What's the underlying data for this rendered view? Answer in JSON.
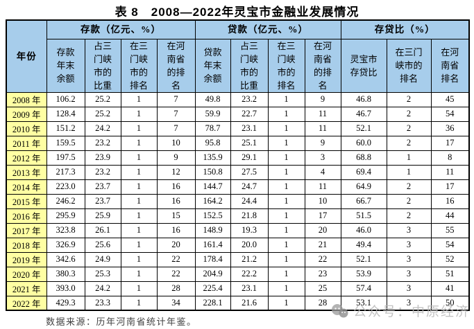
{
  "page": {
    "title": "表 8　2008—2022年灵宝市金融业发展情况",
    "footer": "数据来源：历年河南省统计年鉴。",
    "watermark": "公众号：中原经济"
  },
  "colors": {
    "header_bg": "#A7CDEB",
    "year_bg": "#FFFFA3",
    "border": "#000000",
    "watermark_gray": "#b9b9b9"
  },
  "table": {
    "year_header": "年份",
    "groups": [
      {
        "label": "存款（亿元、%）",
        "colspan": 4
      },
      {
        "label": "贷款（亿元、%）",
        "colspan": 4
      },
      {
        "label": "存贷比（%）",
        "colspan": 3
      }
    ],
    "sub_headers": [
      "存款年末余额",
      "占三门峡市的比重",
      "在三门峡市的排名",
      "在河南省的排名",
      "贷款年末余额",
      "占三门峡市的比重",
      "在三门峡市的排名",
      "在河南省的排名",
      "灵宝市存贷比",
      "在三门峡市的排名",
      "在河南省排名"
    ],
    "rows": [
      {
        "year": "2008 年",
        "values": [
          "106.2",
          "25.2",
          "1",
          "7",
          "49.8",
          "23.2",
          "1",
          "9",
          "46.8",
          "2",
          "45"
        ]
      },
      {
        "year": "2009 年",
        "values": [
          "128.4",
          "25.2",
          "1",
          "7",
          "59.9",
          "22.7",
          "1",
          "11",
          "46.7",
          "2",
          "54"
        ]
      },
      {
        "year": "2010 年",
        "values": [
          "151.2",
          "24.2",
          "1",
          "7",
          "78.7",
          "23.1",
          "1",
          "11",
          "52.1",
          "2",
          "36"
        ]
      },
      {
        "year": "2011 年",
        "values": [
          "159.5",
          "23.2",
          "1",
          "10",
          "95.8",
          "25.1",
          "1",
          "9",
          "60.0",
          "2",
          "17"
        ]
      },
      {
        "year": "2012 年",
        "values": [
          "197.5",
          "23.9",
          "1",
          "9",
          "135.9",
          "29.1",
          "1",
          "3",
          "68.8",
          "1",
          "8"
        ]
      },
      {
        "year": "2013 年",
        "values": [
          "217.3",
          "23.2",
          "1",
          "12",
          "150.8",
          "27.5",
          "1",
          "4",
          "69.4",
          "1",
          "11"
        ]
      },
      {
        "year": "2014 年",
        "values": [
          "223.0",
          "23.7",
          "1",
          "16",
          "144.7",
          "24.7",
          "1",
          "11",
          "64.9",
          "2",
          "17"
        ]
      },
      {
        "year": "2015 年",
        "values": [
          "246.2",
          "23.7",
          "1",
          "16",
          "164.2",
          "24.4",
          "1",
          "10",
          "66.7",
          "2",
          "16"
        ]
      },
      {
        "year": "2016 年",
        "values": [
          "295.9",
          "25.9",
          "1",
          "15",
          "152.5",
          "21.8",
          "1",
          "17",
          "51.5",
          "2",
          "44"
        ]
      },
      {
        "year": "2017 年",
        "values": [
          "323.8",
          "26.1",
          "1",
          "16",
          "148.9",
          "19.3",
          "1",
          "20",
          "46.0",
          "3",
          "55"
        ]
      },
      {
        "year": "2018 年",
        "values": [
          "326.9",
          "25.6",
          "1",
          "20",
          "161.4",
          "20.0",
          "1",
          "21",
          "49.4",
          "3",
          "54"
        ]
      },
      {
        "year": "2019 年",
        "values": [
          "342.6",
          "24.9",
          "1",
          "22",
          "178.4",
          "21.2",
          "1",
          "22",
          "52.1",
          "3",
          "52"
        ]
      },
      {
        "year": "2020 年",
        "values": [
          "380.3",
          "25.3",
          "1",
          "22",
          "204.9",
          "22.2",
          "1",
          "23",
          "53.9",
          "3",
          "51"
        ]
      },
      {
        "year": "2021 年",
        "values": [
          "393.0",
          "24.2",
          "1",
          "28",
          "225.4",
          "23.1",
          "1",
          "25",
          "57.4",
          "3",
          "41"
        ]
      },
      {
        "year": "2022 年",
        "values": [
          "429.3",
          "23.3",
          "1",
          "34",
          "228.1",
          "21.6",
          "1",
          "28",
          "53.1",
          "3",
          "50"
        ]
      }
    ]
  }
}
